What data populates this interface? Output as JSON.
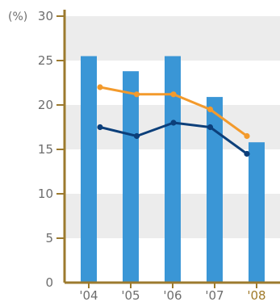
{
  "chart_data": {
    "type": "bar",
    "unit_label": "(%)",
    "categories": [
      "'04",
      "'05",
      "'06",
      "'07",
      "'08"
    ],
    "highlight_category": "'08",
    "ylim": [
      0,
      30
    ],
    "yticks": [
      0,
      5,
      10,
      15,
      20,
      25,
      30
    ],
    "grid": "alternating horizontal bands",
    "bars": {
      "color": "#3a96d6",
      "values": [
        25.5,
        23.8,
        25.5,
        20.9,
        15.8
      ]
    },
    "lines": [
      {
        "color": "#f39a2c",
        "points": [
          {
            "x": "'04",
            "y": 22.0
          },
          {
            "x": "'05",
            "y": 21.2
          },
          {
            "x": "'06",
            "y": 21.2
          },
          {
            "x": "'07",
            "y": 19.5
          },
          {
            "x": "'08",
            "y": 16.5
          }
        ]
      },
      {
        "color": "#0c3f7a",
        "points": [
          {
            "x": "'04",
            "y": 17.5
          },
          {
            "x": "'05",
            "y": 16.5
          },
          {
            "x": "'06",
            "y": 18.0
          },
          {
            "x": "'07",
            "y": 17.5
          },
          {
            "x": "'08",
            "y": 14.5
          }
        ]
      }
    ],
    "colors": {
      "axis": "#9c7a2e",
      "band": "#ececec",
      "tick_text": "#6d6d6d",
      "highlight_text": "#a07a2a"
    }
  }
}
